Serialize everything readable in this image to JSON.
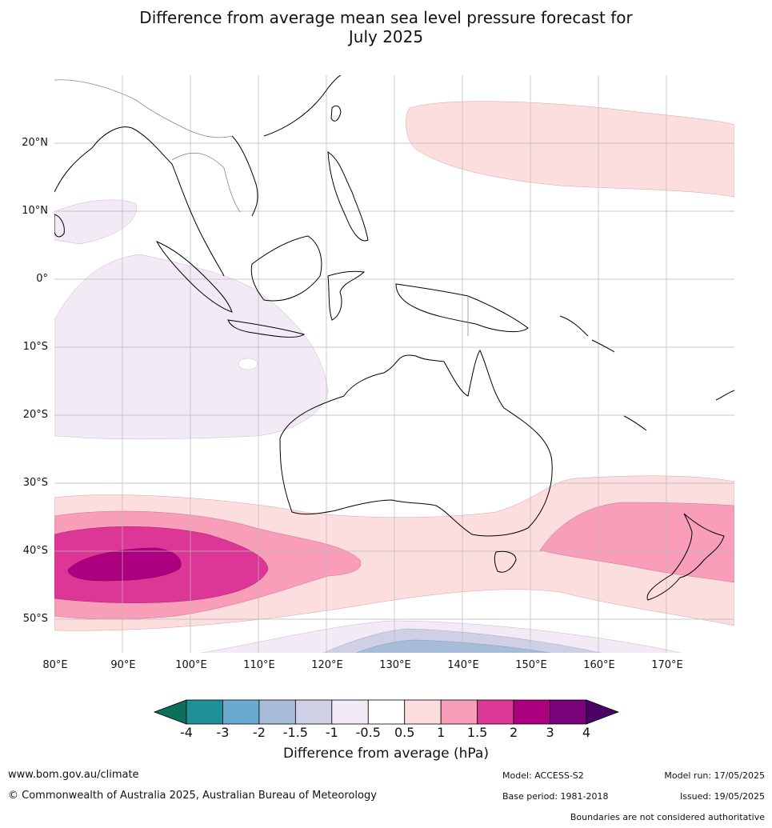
{
  "title": {
    "line1": "Difference from average mean sea level pressure forecast for",
    "line2": "July 2025"
  },
  "map": {
    "lat_labels": [
      "20°N",
      "10°N",
      "0°",
      "10°S",
      "20°S",
      "30°S",
      "40°S",
      "50°S"
    ],
    "lon_labels": [
      "80°E",
      "90°E",
      "100°E",
      "110°E",
      "120°E",
      "130°E",
      "140°E",
      "150°E",
      "160°E",
      "170°E"
    ],
    "extent": {
      "lon": [
        80,
        180
      ],
      "lat": [
        -55,
        30
      ]
    }
  },
  "colorbar": {
    "title": "Difference from average (hPa)",
    "ticks": [
      "-4",
      "-3",
      "-2",
      "-1.5",
      "-1",
      "-0.5",
      "0.5",
      "1",
      "1.5",
      "2",
      "3",
      "4"
    ],
    "colors": [
      "#0e6e5c",
      "#1e9097",
      "#6aa9d0",
      "#a6bcd9",
      "#cfd0e6",
      "#f2eaf4",
      "#ffffff",
      "#fcdede",
      "#f89eb9",
      "#dc3696",
      "#ad0080",
      "#7a037b",
      "#4b0265"
    ]
  },
  "footer": {
    "website": "www.bom.gov.au/climate",
    "copyright": "© Commonwealth of Australia 2025, Australian Bureau of Meteorology",
    "model": "Model: ACCESS-S2",
    "model_run": "Model run: 17/05/2025",
    "base_period": "Base period: 1981-2018",
    "issued": "Issued: 19/05/2025",
    "disclaimer": "Boundaries are not considered authoritative"
  }
}
